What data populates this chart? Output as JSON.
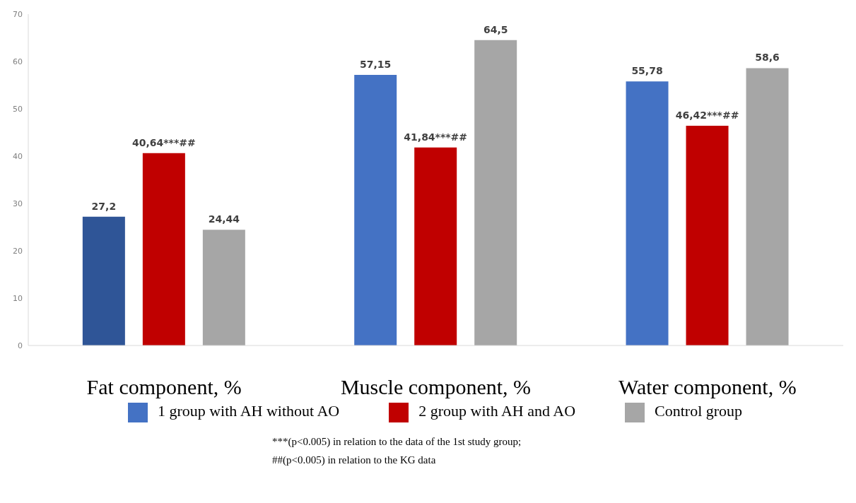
{
  "chart_data": {
    "type": "bar",
    "categories": [
      "Fat component, %",
      "Muscle component, %",
      "Water component, %"
    ],
    "series": [
      {
        "name": "1 group with AH without AO",
        "color": "#4472c4",
        "colors": [
          "#2f5597",
          "#4472c4",
          "#4472c4"
        ],
        "values": [
          27.2,
          57.15,
          55.78
        ],
        "value_labels": [
          "27,2",
          "57,15",
          "55,78"
        ]
      },
      {
        "name": "2 group with AH and AO",
        "color": "#c00000",
        "values": [
          40.64,
          41.84,
          46.42
        ],
        "value_labels": [
          "40,64***##",
          "41,84***##",
          "46,42***##"
        ]
      },
      {
        "name": "Control group",
        "color": "#a6a6a6",
        "values": [
          24.44,
          64.5,
          58.6
        ],
        "value_labels": [
          "24,44",
          "64,5",
          "58,6"
        ]
      }
    ],
    "ylim": [
      0,
      70
    ],
    "yticks": [
      0,
      10,
      20,
      30,
      40,
      50,
      60,
      70
    ],
    "grid": false,
    "legend": "bottom",
    "annotations": [
      "***(p<0.005) in relation to the data of the 1st study group;",
      "##(p<0.005) in relation to the KG data"
    ]
  }
}
